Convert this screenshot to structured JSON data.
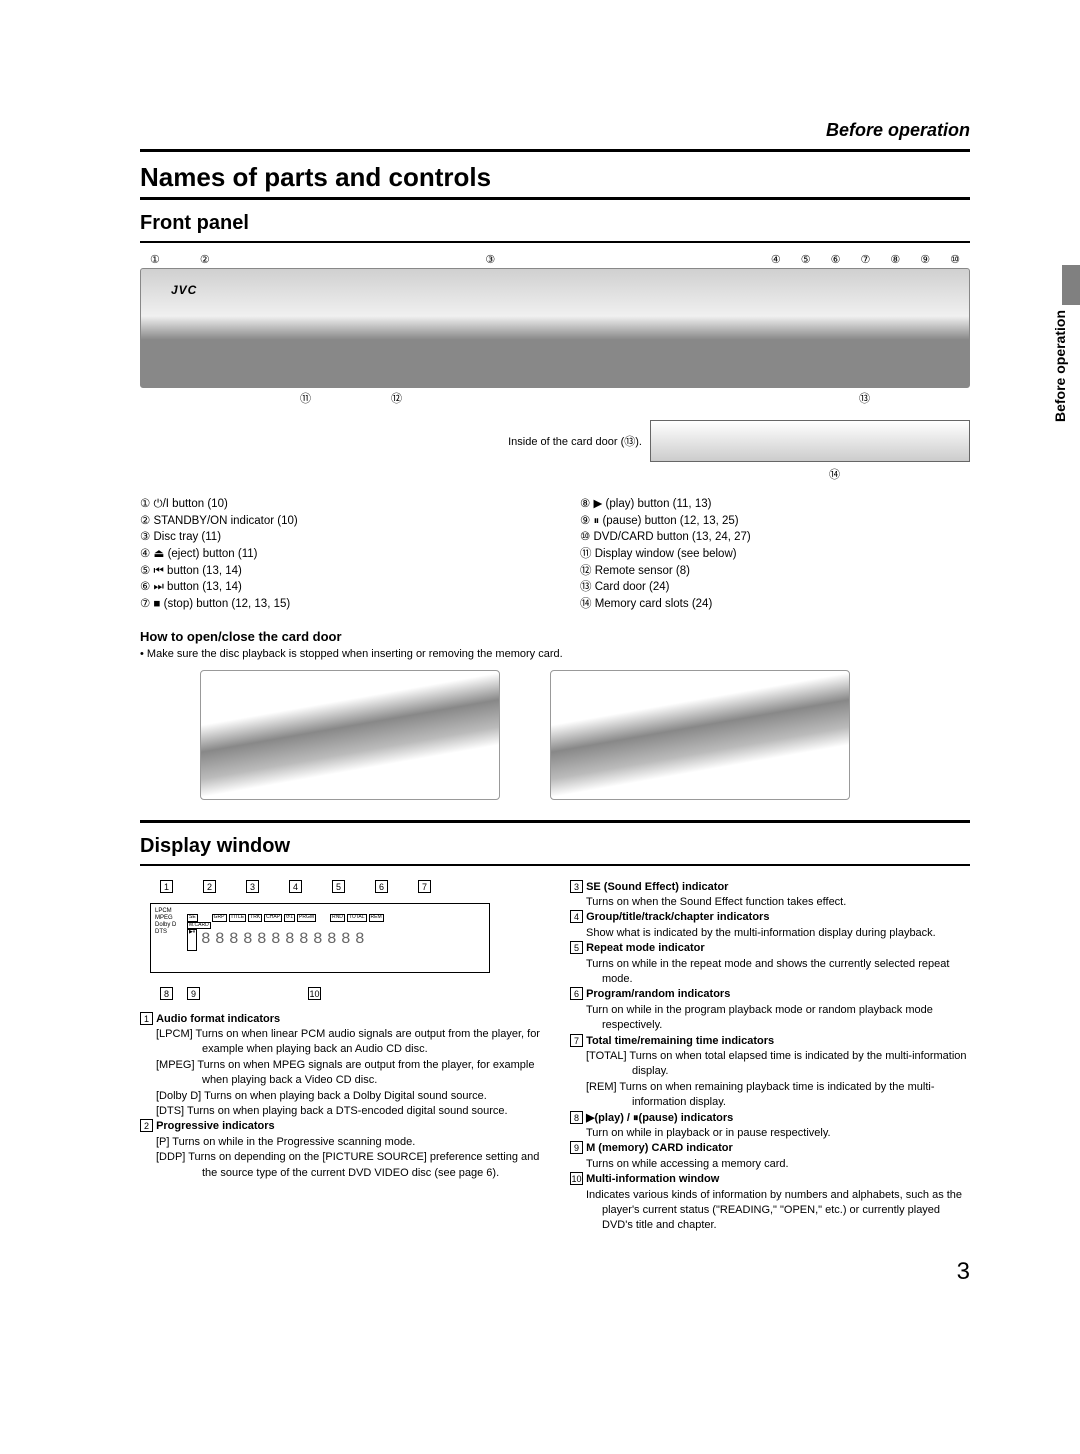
{
  "header": {
    "section": "Before operation"
  },
  "sideTab": {
    "text": "Before operation"
  },
  "titles": {
    "main": "Names of parts and controls",
    "frontPanel": "Front panel",
    "displayWindow": "Display window"
  },
  "frontPanel": {
    "calloutsTop": [
      "①",
      "②",
      "③",
      "④",
      "⑤",
      "⑥",
      "⑦",
      "⑧",
      "⑨",
      "⑩"
    ],
    "calloutsBottomLeft": [
      "⑪",
      "⑫"
    ],
    "calloutsBottomRight": [
      "⑬"
    ],
    "cardDoorLabel": "Inside of the card door (⑬).",
    "calloutCard": "⑭",
    "listLeft": [
      "① ⏻/I button (10)",
      "② STANDBY/ON indicator (10)",
      "③ Disc tray (11)",
      "④ ⏏ (eject) button (11)",
      "⑤ ⏮ button (13, 14)",
      "⑥ ⏭ button (13, 14)",
      "⑦ ■ (stop) button (12, 13, 15)"
    ],
    "listRight": [
      "⑧ ▶ (play) button (11, 13)",
      "⑨ ⏸ (pause) button (12, 13, 25)",
      "⑩ DVD/CARD button (13, 24, 27)",
      "⑪ Display window (see below)",
      "⑫ Remote sensor (8)",
      "⑬ Card door (24)",
      "⑭ Memory card slots (24)"
    ],
    "howToTitle": "How to open/close the card door",
    "howToNote": "• Make sure the disc playback is stopped when inserting or removing the memory card."
  },
  "displayWindow": {
    "diagramTopLabels": [
      "1",
      "2",
      "3",
      "4",
      "5",
      "6",
      "7"
    ],
    "diagramBottomLabels": [
      "8",
      "9",
      "10"
    ],
    "diagramIndicators": [
      "LPCM",
      "MPEG",
      "Dolby D",
      "DTS",
      "M.CARD",
      "P",
      "DDP",
      "SE",
      "GRP",
      "TITLE",
      "TRK",
      "CHAP",
      "⟳1",
      "PRGM",
      "RND",
      "TOTAL",
      "REM",
      "▶⏸"
    ],
    "leftCol": [
      {
        "num": "1",
        "title": "Audio format indicators",
        "lines": [
          "[LPCM] Turns on when linear PCM audio signals are output from the player, for example when playing back an Audio CD disc.",
          "[MPEG] Turns on when MPEG signals are output from the player, for example when playing back a Video CD disc.",
          "[Dolby D] Turns on when playing back a Dolby Digital sound source.",
          "[DTS] Turns on when playing back a DTS-encoded digital sound source."
        ]
      },
      {
        "num": "2",
        "title": "Progressive indicators",
        "lines": [
          "[P] Turns on while in the Progressive scanning mode.",
          "[DDP] Turns on depending on the [PICTURE SOURCE] preference setting and the source type of the current DVD VIDEO disc (see page 6)."
        ]
      }
    ],
    "rightCol": [
      {
        "num": "3",
        "title": "SE (Sound Effect) indicator",
        "lines": [
          "Turns on when the Sound Effect function takes effect."
        ]
      },
      {
        "num": "4",
        "title": "Group/title/track/chapter indicators",
        "lines": [
          "Show what is indicated by the multi-information display during playback."
        ]
      },
      {
        "num": "5",
        "title": "Repeat mode indicator",
        "lines": [
          "Turns on while in the repeat mode and shows the currently selected repeat mode."
        ]
      },
      {
        "num": "6",
        "title": "Program/random indicators",
        "lines": [
          "Turn on while in the program playback mode or random playback mode respectively."
        ]
      },
      {
        "num": "7",
        "title": "Total time/remaining time indicators",
        "lines": [
          "[TOTAL] Turns on when total elapsed time is indicated by the multi-information display.",
          "[REM] Turns on when remaining playback time is indicated by the multi-information display."
        ]
      },
      {
        "num": "8",
        "title": "▶(play) / ⏸(pause) indicators",
        "lines": [
          "Turn on while in playback or in pause respectively."
        ]
      },
      {
        "num": "9",
        "title": "M (memory) CARD indicator",
        "lines": [
          "Turns on while accessing a memory card."
        ]
      },
      {
        "num": "10",
        "title": "Multi-information window",
        "lines": [
          "Indicates various kinds of information by numbers and alphabets, such as the player's current status (\"READING,\" \"OPEN,\" etc.) or currently played DVD's title and chapter."
        ]
      }
    ]
  },
  "pageNumber": "3"
}
